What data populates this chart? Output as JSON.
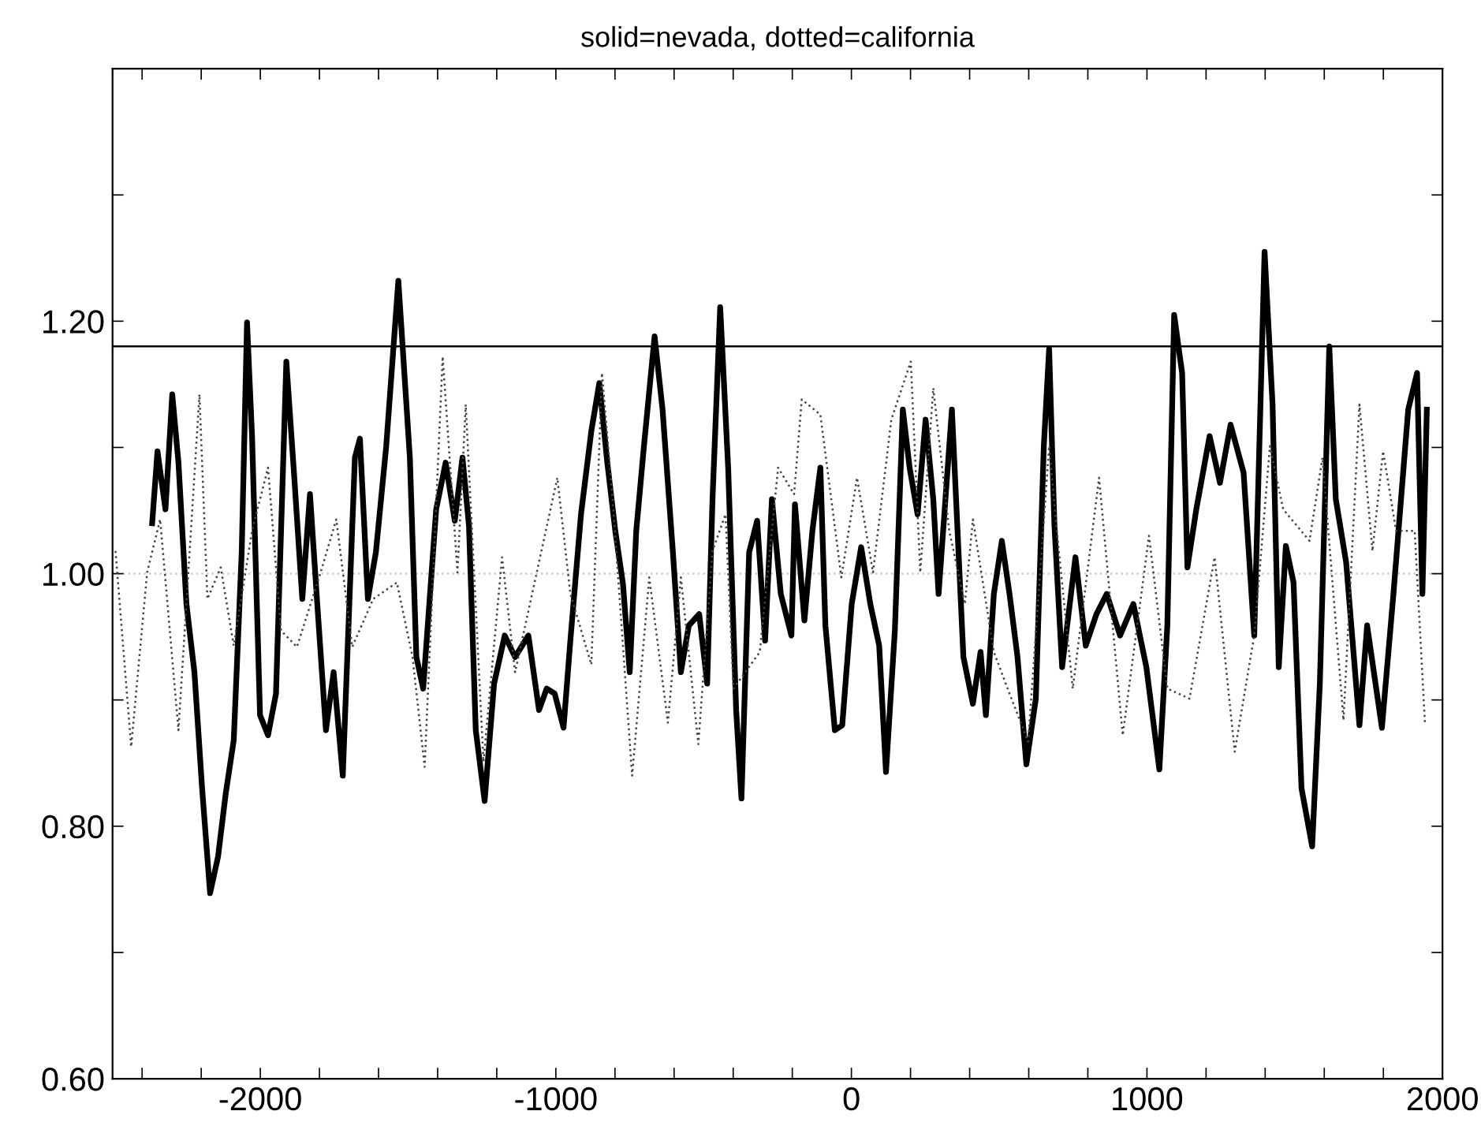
{
  "chart_data": {
    "type": "line",
    "title": "solid=nevada, dotted=california",
    "xlim": [
      -2500,
      2000
    ],
    "ylim": [
      0.6,
      1.4
    ],
    "xticks": [
      {
        "value": -2400,
        "label": null
      },
      {
        "value": -2200,
        "label": null
      },
      -2000,
      {
        "value": -1800,
        "label": null
      },
      {
        "value": -1600,
        "label": null
      },
      {
        "value": -1400,
        "label": null
      },
      {
        "value": -1200,
        "label": null
      },
      -1000,
      {
        "value": -800,
        "label": null
      },
      {
        "value": -600,
        "label": null
      },
      {
        "value": -400,
        "label": null
      },
      {
        "value": -200,
        "label": null
      },
      0,
      {
        "value": 200,
        "label": null
      },
      {
        "value": 400,
        "label": null
      },
      {
        "value": 600,
        "label": null
      },
      {
        "value": 800,
        "label": null
      },
      1000,
      {
        "value": 1200,
        "label": null
      },
      {
        "value": 1400,
        "label": null
      },
      {
        "value": 1600,
        "label": null
      },
      {
        "value": 1800,
        "label": null
      },
      2000
    ],
    "yticks": [
      {
        "value": 0.6,
        "label": "0.60"
      },
      {
        "value": 0.7,
        "label": null
      },
      {
        "value": 0.8,
        "label": "0.80"
      },
      {
        "value": 0.9,
        "label": null
      },
      {
        "value": 1.0,
        "label": "1.00"
      },
      {
        "value": 1.1,
        "label": null
      },
      {
        "value": 1.2,
        "label": "1.20"
      },
      {
        "value": 1.3,
        "label": null
      }
    ],
    "grid": false,
    "legend": false,
    "ref_lines": [
      {
        "axis": "y",
        "value": 1.18,
        "color": "#000000",
        "line_style": "solid"
      },
      {
        "axis": "y",
        "value": 1.0,
        "color": "#cccccc",
        "line_style": "dotted"
      }
    ],
    "series": [
      {
        "color": "#000000",
        "line_style": "solid",
        "x": [
          -2366,
          -2348,
          -2321,
          -2298,
          -2277,
          -2250,
          -2223,
          -2197,
          -2170,
          -2143,
          -2117,
          -2090,
          -2063,
          -2045,
          -2028,
          -2001,
          -1974,
          -1947,
          -1912,
          -1885,
          -1858,
          -1832,
          -1805,
          -1778,
          -1752,
          -1721,
          -1680,
          -1663,
          -1636,
          -1609,
          -1574,
          -1533,
          -1494,
          -1472,
          -1449,
          -1405,
          -1373,
          -1342,
          -1316,
          -1294,
          -1271,
          -1241,
          -1209,
          -1173,
          -1138,
          -1093,
          -1057,
          -1031,
          -1004,
          -974,
          -951,
          -915,
          -880,
          -853,
          -826,
          -799,
          -773,
          -750,
          -728,
          -702,
          -666,
          -639,
          -604,
          -577,
          -550,
          -515,
          -488,
          -470,
          -444,
          -417,
          -390,
          -372,
          -346,
          -319,
          -292,
          -269,
          -239,
          -203,
          -191,
          -159,
          -132,
          -105,
          -88,
          -56,
          -31,
          1,
          33,
          64,
          94,
          117,
          147,
          174,
          197,
          224,
          251,
          277,
          295,
          340,
          379,
          411,
          437,
          455,
          482,
          509,
          535,
          562,
          592,
          624,
          651,
          669,
          687,
          713,
          758,
          793,
          829,
          864,
          909,
          954,
          998,
          1042,
          1069,
          1092,
          1119,
          1137,
          1167,
          1212,
          1247,
          1283,
          1327,
          1363,
          1398,
          1425,
          1446,
          1470,
          1496,
          1523,
          1559,
          1585,
          1617,
          1639,
          1674,
          1719,
          1745,
          1795,
          1834,
          1884,
          1914,
          1932,
          1947
        ],
        "values": [
          1.04,
          1.097,
          1.051,
          1.142,
          1.088,
          0.976,
          0.922,
          0.83,
          0.747,
          0.776,
          0.826,
          0.868,
          1.017,
          1.199,
          1.109,
          0.888,
          0.872,
          0.905,
          1.168,
          1.076,
          0.98,
          1.063,
          0.968,
          0.876,
          0.922,
          0.84,
          1.092,
          1.107,
          0.98,
          1.017,
          1.101,
          1.232,
          1.092,
          0.934,
          0.909,
          1.051,
          1.088,
          1.042,
          1.092,
          1.038,
          0.876,
          0.82,
          0.913,
          0.951,
          0.934,
          0.951,
          0.892,
          0.909,
          0.905,
          0.878,
          0.947,
          1.047,
          1.113,
          1.151,
          1.088,
          1.034,
          0.992,
          0.922,
          1.034,
          1.101,
          1.188,
          1.13,
          1.017,
          0.922,
          0.959,
          0.968,
          0.913,
          1.059,
          1.211,
          1.084,
          0.892,
          0.822,
          1.017,
          1.042,
          0.947,
          1.059,
          0.984,
          0.951,
          1.055,
          0.963,
          1.034,
          1.084,
          0.959,
          0.876,
          0.88,
          0.976,
          1.021,
          0.976,
          0.943,
          0.843,
          0.955,
          1.13,
          1.084,
          1.047,
          1.122,
          1.059,
          0.984,
          1.13,
          0.934,
          0.897,
          0.938,
          0.888,
          0.984,
          1.026,
          0.984,
          0.934,
          0.849,
          0.901,
          1.101,
          1.178,
          1.038,
          0.926,
          1.013,
          0.943,
          0.968,
          0.984,
          0.951,
          0.976,
          0.926,
          0.845,
          0.959,
          1.205,
          1.159,
          1.005,
          1.051,
          1.109,
          1.072,
          1.118,
          1.08,
          0.951,
          1.255,
          1.134,
          0.926,
          1.022,
          0.993,
          0.83,
          0.784,
          0.913,
          1.18,
          1.059,
          1.009,
          0.88,
          0.959,
          0.878,
          0.984,
          1.13,
          1.159,
          0.984,
          1.13
        ]
      },
      {
        "color": "#444444",
        "line_style": "dotted",
        "x": [
          -2490,
          -2437,
          -2383,
          -2339,
          -2277,
          -2206,
          -2179,
          -2134,
          -2090,
          -2028,
          -1974,
          -1930,
          -1876,
          -1796,
          -1743,
          -1689,
          -1618,
          -1538,
          -1485,
          -1444,
          -1383,
          -1333,
          -1305,
          -1245,
          -1182,
          -1138,
          -995,
          -951,
          -880,
          -844,
          -808,
          -742,
          -684,
          -621,
          -577,
          -518,
          -470,
          -426,
          -399,
          -310,
          -248,
          -194,
          -168,
          -105,
          -34,
          19,
          73,
          135,
          201,
          233,
          277,
          331,
          384,
          411,
          482,
          535,
          598,
          669,
          695,
          749,
          838,
          918,
          1007,
          1069,
          1144,
          1229,
          1297,
          1363,
          1416,
          1461,
          1550,
          1594,
          1665,
          1719,
          1763,
          1799,
          1843,
          1906,
          1941
        ],
        "values": [
          1.018,
          0.863,
          1.001,
          1.043,
          0.876,
          1.142,
          0.98,
          1.005,
          0.943,
          1.034,
          1.084,
          0.955,
          0.942,
          1.001,
          1.043,
          0.942,
          0.98,
          0.993,
          0.934,
          0.847,
          1.172,
          1.001,
          1.134,
          0.851,
          1.013,
          0.922,
          1.076,
          0.984,
          0.928,
          1.159,
          1.059,
          0.84,
          0.997,
          0.882,
          0.997,
          0.865,
          1.018,
          1.047,
          0.909,
          0.938,
          1.084,
          1.063,
          1.138,
          1.126,
          0.997,
          1.076,
          1.001,
          1.122,
          1.168,
          1.001,
          1.147,
          1.034,
          0.976,
          1.043,
          0.938,
          0.905,
          0.867,
          1.101,
          1.034,
          0.909,
          1.076,
          0.872,
          1.03,
          0.909,
          0.901,
          1.013,
          0.859,
          0.951,
          1.101,
          1.051,
          1.026,
          1.092,
          0.884,
          1.134,
          1.018,
          1.097,
          1.034,
          1.034,
          0.88
        ]
      }
    ]
  }
}
